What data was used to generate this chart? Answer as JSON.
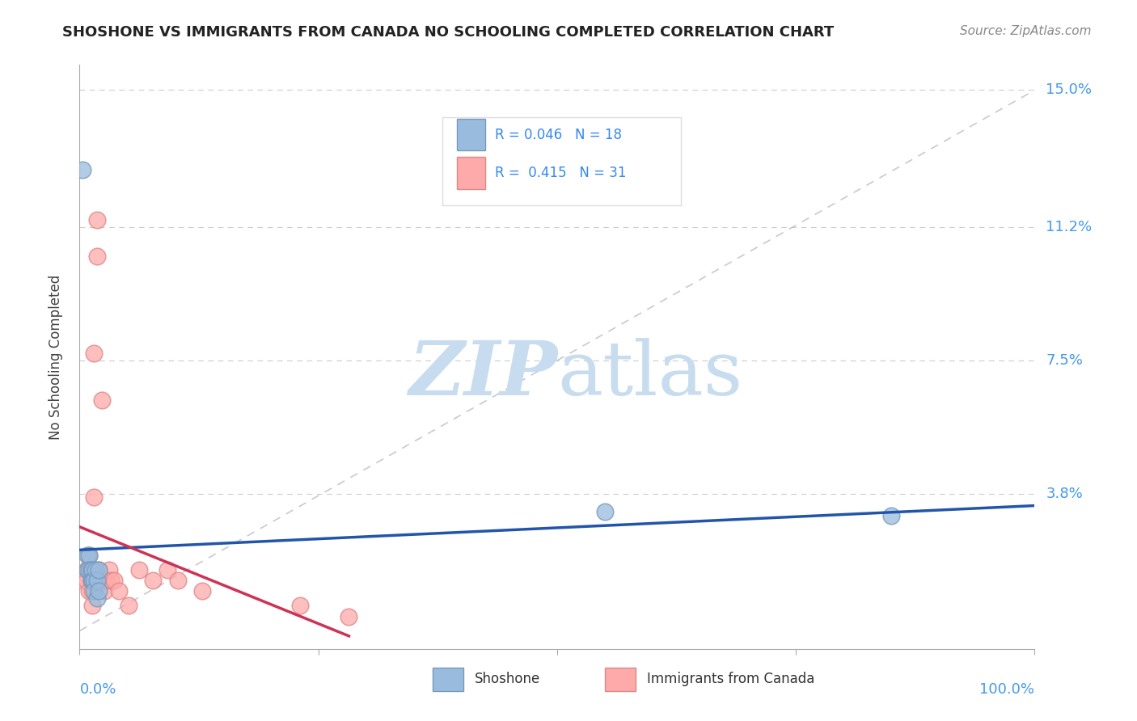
{
  "title": "SHOSHONE VS IMMIGRANTS FROM CANADA NO SCHOOLING COMPLETED CORRELATION CHART",
  "source": "Source: ZipAtlas.com",
  "ylabel": "No Schooling Completed",
  "ytick_vals": [
    0.0,
    0.038,
    0.075,
    0.112,
    0.15
  ],
  "ytick_labels": [
    "",
    "3.8%",
    "7.5%",
    "11.2%",
    "15.0%"
  ],
  "xlim": [
    0.0,
    1.0
  ],
  "ylim": [
    -0.005,
    0.157
  ],
  "legend_label1": "Shoshone",
  "legend_label2": "Immigrants from Canada",
  "R1": "0.046",
  "N1": "18",
  "R2": "0.415",
  "N2": "31",
  "color_blue": "#99BBDD",
  "color_blue_edge": "#7799BB",
  "color_pink": "#FFAAAA",
  "color_pink_edge": "#DD8888",
  "color_blue_line": "#2255AA",
  "color_pink_line": "#CC3355",
  "watermark_color": "#C8DCF0",
  "shoshone_x": [
    0.003,
    0.008,
    0.008,
    0.01,
    0.01,
    0.012,
    0.012,
    0.013,
    0.013,
    0.015,
    0.015,
    0.017,
    0.018,
    0.018,
    0.02,
    0.02,
    0.55,
    0.85
  ],
  "shoshone_y": [
    0.128,
    0.021,
    0.017,
    0.021,
    0.017,
    0.017,
    0.014,
    0.017,
    0.014,
    0.014,
    0.011,
    0.017,
    0.014,
    0.009,
    0.011,
    0.017,
    0.033,
    0.032
  ],
  "canada_x": [
    0.003,
    0.007,
    0.007,
    0.01,
    0.01,
    0.012,
    0.012,
    0.013,
    0.013,
    0.013,
    0.015,
    0.015,
    0.018,
    0.018,
    0.02,
    0.02,
    0.023,
    0.026,
    0.028,
    0.031,
    0.033,
    0.036,
    0.041,
    0.051,
    0.062,
    0.077,
    0.092,
    0.103,
    0.128,
    0.231,
    0.282
  ],
  "canada_y": [
    0.014,
    0.017,
    0.014,
    0.021,
    0.011,
    0.017,
    0.014,
    0.014,
    0.011,
    0.007,
    0.077,
    0.037,
    0.114,
    0.104,
    0.017,
    0.014,
    0.064,
    0.011,
    0.014,
    0.017,
    0.014,
    0.014,
    0.011,
    0.007,
    0.017,
    0.014,
    0.017,
    0.014,
    0.011,
    0.007,
    0.004
  ]
}
